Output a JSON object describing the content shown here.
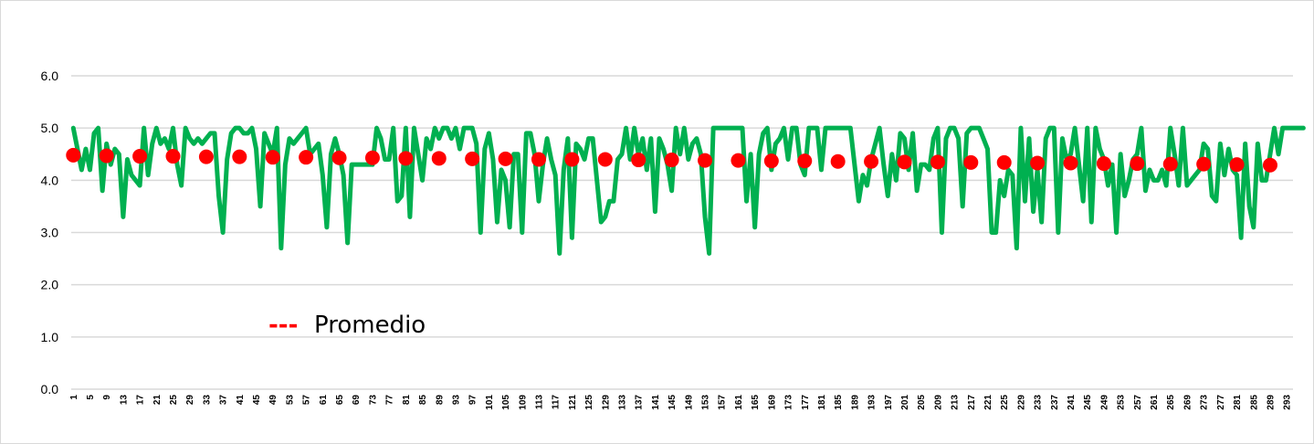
{
  "chart_data": {
    "type": "line",
    "title": "",
    "xlabel": "",
    "ylabel": "",
    "ylim": [
      0,
      6
    ],
    "y_ticks": [
      "0.0",
      "1.0",
      "2.0",
      "3.0",
      "4.0",
      "5.0",
      "6.0"
    ],
    "x_count": 294,
    "x_tick_step": 4,
    "grid": "horizontal",
    "legend": {
      "position": "lower-left",
      "entries": [
        {
          "label": "Promedio",
          "marker": "---"
        }
      ]
    },
    "colors": {
      "series": "#00b050",
      "average": "#ff0000",
      "grid": "#d9d9d9"
    },
    "series": [
      {
        "values": [
          5.0,
          4.6,
          4.2,
          4.6,
          4.2,
          4.9,
          5.0,
          3.8,
          4.7,
          4.3,
          4.6,
          4.5,
          3.3,
          4.4,
          4.1,
          4.0,
          3.9,
          5.0,
          4.1,
          4.7,
          5.0,
          4.7,
          4.8,
          4.6,
          5.0,
          4.3,
          3.9,
          5.0,
          4.8,
          4.7,
          4.8,
          4.7,
          4.8,
          4.9,
          4.9,
          3.7,
          3.0,
          4.4,
          4.9,
          5.0,
          5.0,
          4.9,
          4.9,
          5.0,
          4.6,
          3.5,
          4.9,
          4.7,
          4.5,
          5.0,
          2.7,
          4.3,
          4.8,
          4.7,
          4.8,
          4.9,
          5.0,
          4.5,
          4.6,
          4.7,
          4.1,
          3.1,
          4.5,
          4.8,
          4.5,
          4.1,
          2.8,
          4.3,
          4.3,
          4.3,
          4.3,
          4.3,
          4.3,
          5.0,
          4.8,
          4.4,
          4.4,
          5.0,
          3.6,
          3.7,
          5.0,
          3.3,
          5.0,
          4.5,
          4.0,
          4.8,
          4.6,
          5.0,
          4.8,
          5.0,
          5.0,
          4.8,
          5.0,
          4.6,
          5.0,
          5.0,
          5.0,
          4.7,
          3.0,
          4.6,
          4.9,
          4.4,
          3.2,
          4.2,
          4.0,
          3.1,
          4.5,
          4.5,
          3.0,
          4.9,
          4.9,
          4.5,
          3.6,
          4.3,
          4.8,
          4.4,
          4.1,
          2.6,
          4.2,
          4.8,
          2.9,
          4.7,
          4.6,
          4.4,
          4.8,
          4.8,
          4.0,
          3.2,
          3.3,
          3.6,
          3.6,
          4.4,
          4.5,
          5.0,
          4.4,
          5.0,
          4.5,
          4.8,
          4.2,
          4.8,
          3.4,
          4.8,
          4.6,
          4.3,
          3.8,
          5.0,
          4.5,
          5.0,
          4.4,
          4.7,
          4.8,
          4.5,
          3.3,
          2.6,
          5.0,
          5.0,
          5.0,
          5.0,
          5.0,
          5.0,
          5.0,
          5.0,
          3.6,
          4.5,
          3.1,
          4.5,
          4.9,
          5.0,
          4.2,
          4.7,
          4.8,
          5.0,
          4.4,
          5.0,
          5.0,
          4.3,
          4.1,
          5.0,
          5.0,
          5.0,
          4.2,
          5.0,
          5.0,
          5.0,
          5.0,
          5.0,
          5.0,
          5.0,
          4.3,
          3.6,
          4.1,
          3.9,
          4.4,
          4.7,
          5.0,
          4.3,
          3.7,
          4.5,
          4.0,
          4.9,
          4.8,
          4.2,
          4.9,
          3.8,
          4.3,
          4.3,
          4.2,
          4.8,
          5.0,
          3.0,
          4.8,
          5.0,
          5.0,
          4.8,
          3.5,
          4.9,
          5.0,
          5.0,
          5.0,
          4.8,
          4.6,
          3.0,
          3.0,
          4.0,
          3.7,
          4.2,
          4.1,
          2.7,
          5.0,
          3.6,
          4.8,
          3.4,
          4.2,
          3.2,
          4.8,
          5.0,
          5.0,
          3.0,
          4.8,
          4.4,
          4.5,
          5.0,
          4.3,
          3.6,
          5.0,
          3.2,
          5.0,
          4.6,
          4.4,
          3.9,
          4.3,
          3.0,
          4.5,
          3.7,
          4.0,
          4.4,
          4.5,
          5.0,
          3.8,
          4.2,
          4.0,
          4.0,
          4.2,
          3.9,
          5.0,
          4.5,
          3.9,
          5.0,
          3.9,
          4.0,
          4.1,
          4.2,
          4.7,
          4.6,
          3.7,
          3.6,
          4.7,
          4.1,
          4.6,
          4.2,
          4.1,
          2.9,
          4.7,
          3.5,
          3.1,
          4.7,
          4.0,
          4.0,
          4.5,
          5.0,
          4.5,
          5.0,
          5.0,
          5.0,
          5.0,
          5.0,
          5.0
        ]
      },
      {
        "name": "Promedio",
        "x": [
          1,
          9,
          17,
          25,
          33,
          41,
          49,
          57,
          65,
          73,
          81,
          89,
          97,
          105,
          113,
          121,
          129,
          137,
          145,
          153,
          161,
          169,
          177,
          185,
          193,
          201,
          209,
          217,
          225,
          233,
          241,
          249,
          257,
          265,
          273,
          281,
          289
        ],
        "values": [
          4.48,
          4.47,
          4.46,
          4.46,
          4.45,
          4.45,
          4.44,
          4.44,
          4.43,
          4.43,
          4.42,
          4.42,
          4.41,
          4.41,
          4.4,
          4.4,
          4.4,
          4.39,
          4.39,
          4.38,
          4.38,
          4.37,
          4.37,
          4.36,
          4.36,
          4.35,
          4.35,
          4.34,
          4.34,
          4.33,
          4.33,
          4.32,
          4.32,
          4.31,
          4.31,
          4.3,
          4.29
        ]
      }
    ]
  }
}
